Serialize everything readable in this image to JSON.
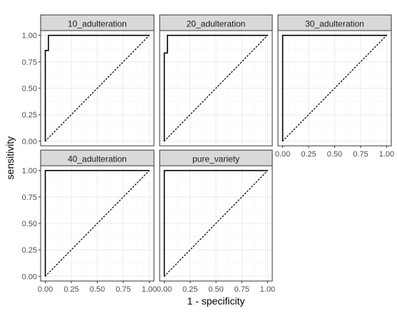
{
  "chart_data": {
    "type": "line",
    "xlabel": "1 - specificity",
    "ylabel": "sensitivity",
    "xlim": [
      0,
      1
    ],
    "ylim": [
      0,
      1
    ],
    "x_ticks": [
      "0.00",
      "0.25",
      "0.50",
      "0.75",
      "1.00"
    ],
    "y_ticks": [
      "0.00",
      "0.25",
      "0.50",
      "0.75",
      "1.00"
    ],
    "grid": true,
    "reference_line": "dotted diagonal y = x",
    "colors": {
      "curve": "#000000",
      "strip_fill": "#d9d9d9",
      "panel_border": "#333333",
      "grid_major": "#ebebeb",
      "grid_minor": "#f5f5f5"
    },
    "panels": [
      {
        "title": "10_adulteration",
        "x": [
          0,
          0,
          0.03,
          0.03,
          1
        ],
        "y": [
          0,
          0.857,
          0.857,
          1,
          1
        ]
      },
      {
        "title": "20_adulteration",
        "x": [
          0,
          0,
          0.03,
          0.03,
          1
        ],
        "y": [
          0,
          0.833,
          0.833,
          1,
          1
        ]
      },
      {
        "title": "30_adulteration",
        "x": [
          0,
          0,
          1
        ],
        "y": [
          0,
          1,
          1
        ]
      },
      {
        "title": "40_adulteration",
        "x": [
          0,
          0,
          1
        ],
        "y": [
          0,
          1,
          1
        ]
      },
      {
        "title": "pure_variety",
        "x": [
          0,
          0,
          1
        ],
        "y": [
          0,
          1,
          1
        ]
      }
    ]
  }
}
